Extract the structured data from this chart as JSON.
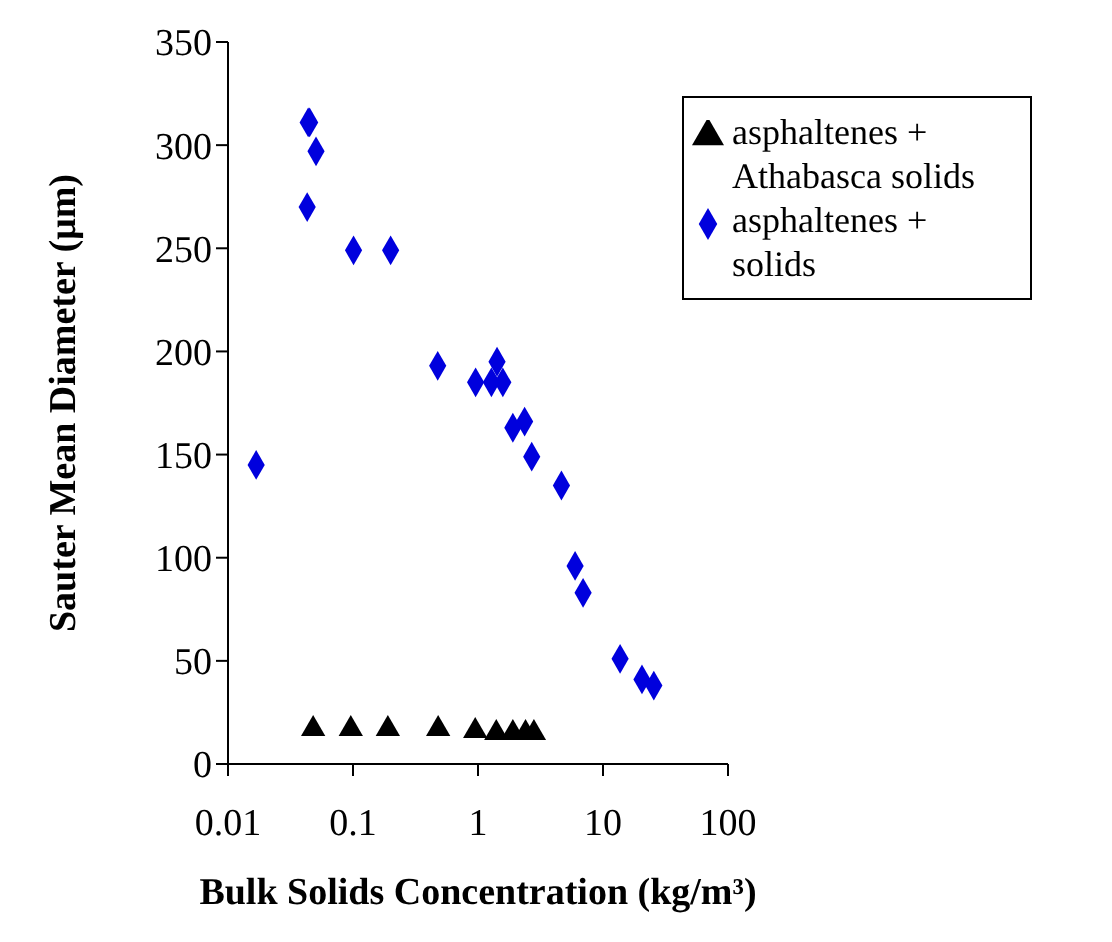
{
  "chart_data": {
    "type": "scatter",
    "xlabel": "Bulk Solids Concentration (kg/m³)",
    "ylabel": "Sauter Mean Diameter (μm)",
    "log": "x",
    "xlim": [
      0.01,
      100
    ],
    "xticks": [
      0.01,
      0.1,
      1,
      10,
      100
    ],
    "ylim": [
      0,
      350
    ],
    "yticks": [
      0,
      50,
      100,
      150,
      200,
      250,
      300,
      350
    ],
    "grid": false,
    "legend": "top right",
    "series": [
      {
        "name": "asphaltenes + Athabasca solids",
        "color": "#000000",
        "marker": "triangle",
        "x": [
          0.048,
          0.096,
          0.19,
          0.48,
          0.95,
          1.4,
          1.9,
          2.4,
          2.8
        ],
        "values": [
          17,
          17,
          17,
          17,
          16,
          15,
          15,
          15,
          15
        ]
      },
      {
        "name": "asphaltenes + solids",
        "color": "#0000dd",
        "marker": "diamond",
        "x": [
          0.0168,
          0.0438,
          0.045,
          0.0506,
          0.043,
          0.101,
          0.2,
          0.476,
          0.957,
          1.28,
          1.42,
          1.58,
          1.9,
          2.36,
          2.69,
          4.65,
          5.98,
          6.93,
          13.7,
          20.5,
          25.5
        ],
        "values": [
          145,
          311,
          311,
          297,
          270,
          249,
          249,
          193,
          185,
          185,
          195,
          185,
          163,
          166,
          149,
          135,
          96,
          83,
          51,
          41,
          38
        ]
      }
    ]
  }
}
